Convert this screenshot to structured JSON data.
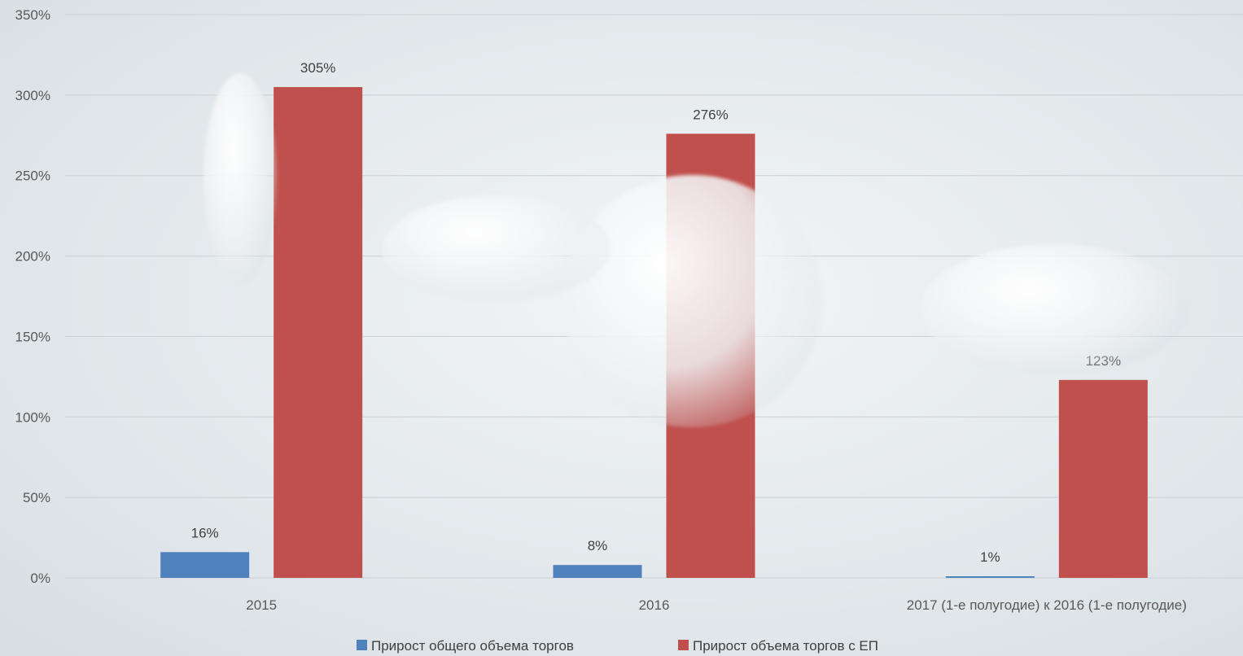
{
  "chart_data": {
    "type": "bar",
    "categories": [
      "2015",
      "2016",
      "2017 (1-е полугодие) к 2016 (1-е полугодие)"
    ],
    "series": [
      {
        "name": "Прирост общего объема торгов",
        "values": [
          16,
          8,
          1
        ],
        "labels": [
          "16%",
          "8%",
          "1%"
        ],
        "color": "#4f81bd"
      },
      {
        "name": "Прирост объема торгов с ЕП",
        "values": [
          305,
          276,
          123
        ],
        "labels": [
          "305%",
          "276%",
          "123%"
        ],
        "color": "#c0504d"
      }
    ],
    "ylim": [
      0,
      350
    ],
    "yticks": [
      0,
      50,
      100,
      150,
      200,
      250,
      300,
      350
    ],
    "ytick_labels": [
      "0%",
      "50%",
      "100%",
      "150%",
      "200%",
      "250%",
      "300%",
      "350%"
    ],
    "grid": true,
    "legend_position": "bottom-center",
    "title": "",
    "xlabel": "",
    "ylabel": ""
  }
}
